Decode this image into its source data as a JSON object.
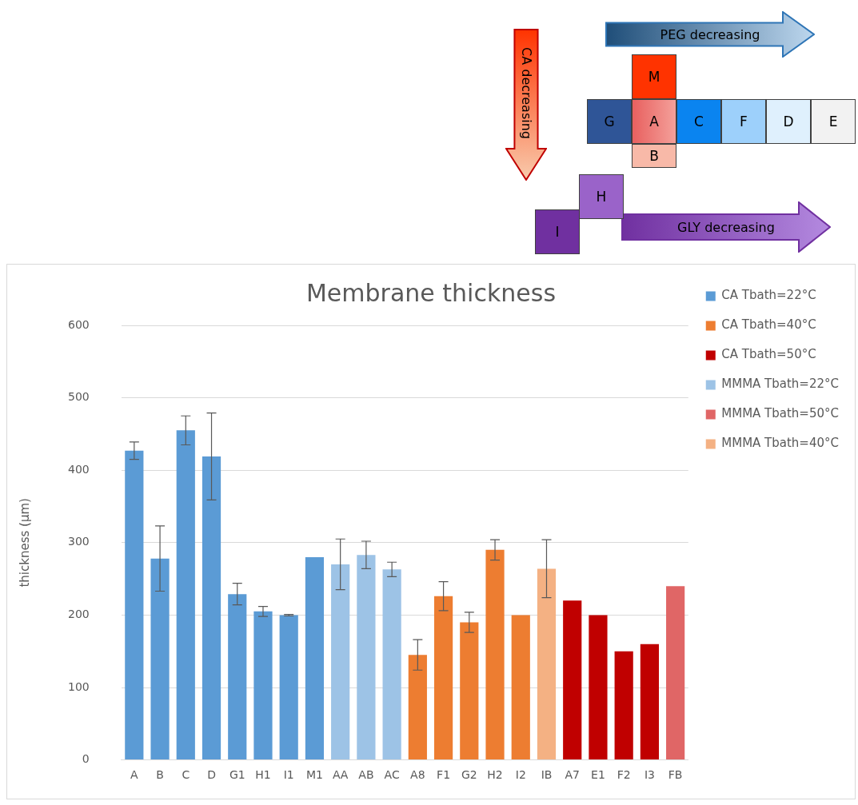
{
  "chart_data": {
    "type": "bar",
    "title": "Membrane thickness",
    "ylabel": "thickness (µm)",
    "categories": [
      "A",
      "B",
      "C",
      "D",
      "G1",
      "H1",
      "I1",
      "M1",
      "AA",
      "AB",
      "AC",
      "A8",
      "F1",
      "G2",
      "H2",
      "I2",
      "IB",
      "A7",
      "E1",
      "F2",
      "I3",
      "FB"
    ],
    "series": [
      {
        "name": "CA Tbath=22°C",
        "color": "#5b9bd5",
        "values": [
          427,
          278,
          455,
          419,
          229,
          205,
          200,
          280,
          null,
          null,
          null,
          null,
          null,
          null,
          null,
          null,
          null,
          null,
          null,
          null,
          null,
          null
        ],
        "errors": [
          12,
          45,
          20,
          60,
          15,
          7,
          1,
          null,
          null,
          null,
          null,
          null,
          null,
          null,
          null,
          null,
          null,
          null,
          null,
          null,
          null,
          null
        ]
      },
      {
        "name": "CA Tbath=40°C",
        "color": "#ed7d31",
        "values": [
          null,
          null,
          null,
          null,
          null,
          null,
          null,
          null,
          null,
          null,
          null,
          145,
          226,
          190,
          290,
          200,
          null,
          null,
          null,
          null,
          null,
          null
        ],
        "errors": [
          null,
          null,
          null,
          null,
          null,
          null,
          null,
          null,
          null,
          null,
          null,
          21,
          20,
          14,
          14,
          null,
          null,
          null,
          null,
          null,
          null,
          null
        ]
      },
      {
        "name": "CA Tbath=50°C",
        "color": "#c00000",
        "values": [
          null,
          null,
          null,
          null,
          null,
          null,
          null,
          null,
          null,
          null,
          null,
          null,
          null,
          null,
          null,
          null,
          null,
          220,
          200,
          150,
          160,
          null
        ]
      },
      {
        "name": "MMMA Tbath=22°C",
        "color": "#9dc3e6",
        "values": [
          null,
          null,
          null,
          null,
          null,
          null,
          null,
          null,
          270,
          283,
          263,
          null,
          null,
          null,
          null,
          null,
          null,
          null,
          null,
          null,
          null,
          null
        ],
        "errors": [
          null,
          null,
          null,
          null,
          null,
          null,
          null,
          null,
          35,
          19,
          10,
          null,
          null,
          null,
          null,
          null,
          null,
          null,
          null,
          null,
          null,
          null
        ]
      },
      {
        "name": "MMMA Tbath=50°C",
        "color": "#e06666",
        "values": [
          null,
          null,
          null,
          null,
          null,
          null,
          null,
          null,
          null,
          null,
          null,
          null,
          null,
          null,
          null,
          null,
          null,
          null,
          null,
          null,
          null,
          240
        ]
      },
      {
        "name": "MMMA Tbath=40°C",
        "color": "#f4b183",
        "values": [
          null,
          null,
          null,
          null,
          null,
          null,
          null,
          null,
          null,
          null,
          null,
          null,
          null,
          null,
          null,
          null,
          264,
          null,
          null,
          null,
          null,
          null
        ],
        "errors": [
          null,
          null,
          null,
          null,
          null,
          null,
          null,
          null,
          null,
          null,
          null,
          null,
          null,
          null,
          null,
          null,
          40,
          null,
          null,
          null,
          null,
          null
        ]
      }
    ],
    "ylim": [
      0,
      600
    ],
    "yticks": [
      0,
      100,
      200,
      300,
      400,
      500,
      600
    ],
    "grid": "y",
    "legend": "right",
    "annotations": [
      "PEG decreasing",
      "CA decreasing",
      "GLY decreasing",
      "M",
      "G",
      "A",
      "C",
      "F",
      "D",
      "E",
      "B",
      "H",
      "I"
    ]
  }
}
